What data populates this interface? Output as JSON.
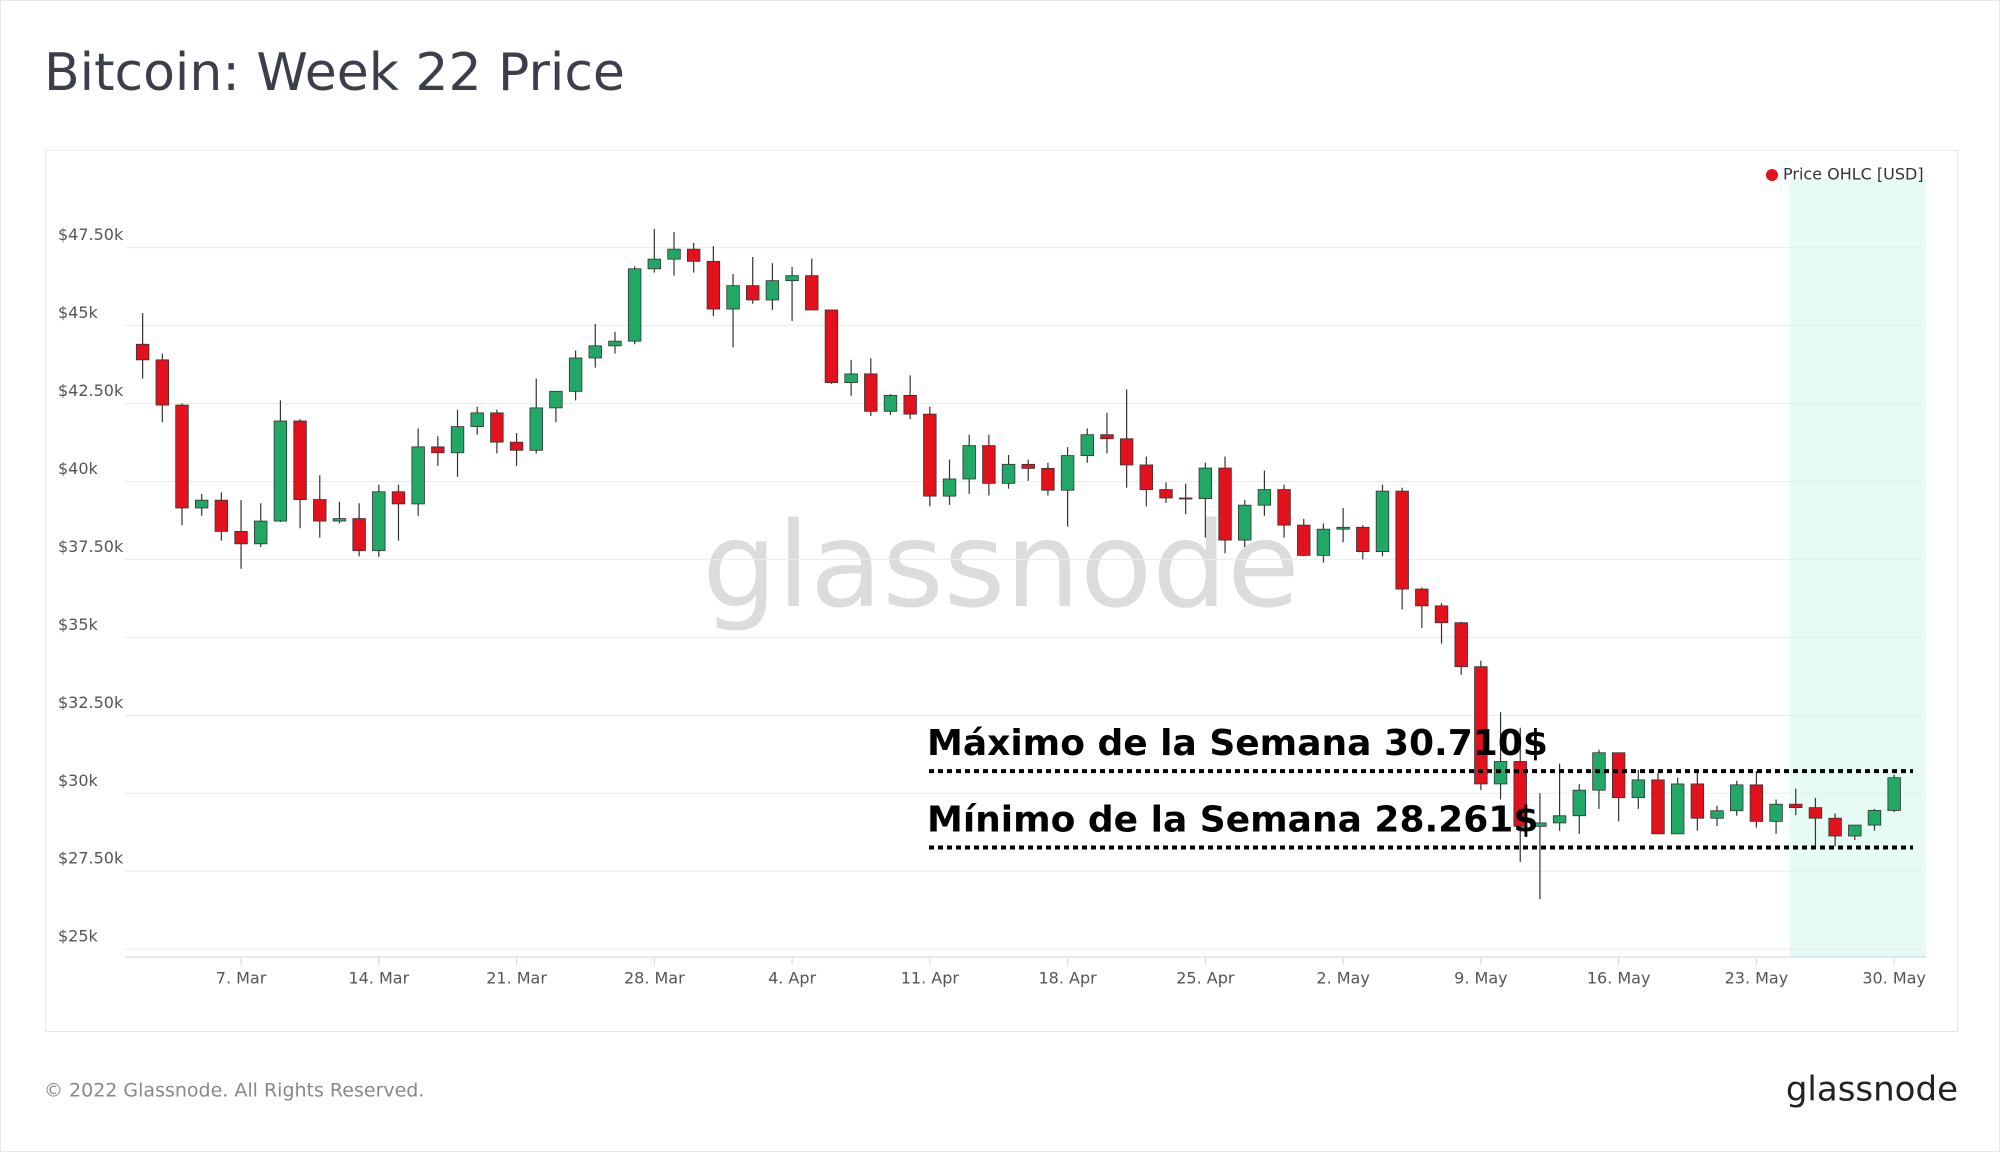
{
  "chart_data": {
    "type": "candlestick",
    "title": "Bitcoin: Week 22 Price",
    "legend": {
      "name": "Price OHLC [USD]",
      "color": "#e3111b",
      "position": "top-right"
    },
    "watermark": "glassnode",
    "footer": "© 2022 Glassnode. All Rights Reserved.",
    "logo": "glassnode",
    "up_color": "#22a866",
    "down_color": "#e3111b",
    "grid": true,
    "x": [
      "2. Mar",
      "3. Mar",
      "4. Mar",
      "5. Mar",
      "6. Mar",
      "7. Mar",
      "8. Mar",
      "9. Mar",
      "10. Mar",
      "11. Mar",
      "12. Mar",
      "13. Mar",
      "14. Mar",
      "15. Mar",
      "16. Mar",
      "17. Mar",
      "18. Mar",
      "19. Mar",
      "20. Mar",
      "21. Mar",
      "22. Mar",
      "23. Mar",
      "24. Mar",
      "25. Mar",
      "26. Mar",
      "27. Mar",
      "28. Mar",
      "29. Mar",
      "30. Mar",
      "31. Mar",
      "1. Apr",
      "2. Apr",
      "3. Apr",
      "4. Apr",
      "5. Apr",
      "6. Apr",
      "7. Apr",
      "8. Apr",
      "9. Apr",
      "10. Apr",
      "11. Apr",
      "12. Apr",
      "13. Apr",
      "14. Apr",
      "15. Apr",
      "16. Apr",
      "17. Apr",
      "18. Apr",
      "19. Apr",
      "20. Apr",
      "21. Apr",
      "22. Apr",
      "23. Apr",
      "24. Apr",
      "25. Apr",
      "26. Apr",
      "27. Apr",
      "28. Apr",
      "29. Apr",
      "30. Apr",
      "1. May",
      "2. May",
      "3. May",
      "4. May",
      "5. May",
      "6. May",
      "7. May",
      "8. May",
      "9. May",
      "10. May",
      "11. May",
      "12. May",
      "13. May",
      "14. May",
      "15. May",
      "16. May",
      "17. May",
      "18. May",
      "19. May",
      "20. May",
      "21. May",
      "22. May",
      "23. May",
      "24. May",
      "25. May",
      "26. May",
      "27. May",
      "28. May",
      "29. May",
      "30. May"
    ],
    "open": [
      44400,
      43900,
      42450,
      39150,
      39400,
      38400,
      38000,
      38730,
      41940,
      39420,
      38730,
      38810,
      37780,
      39670,
      39280,
      41110,
      40920,
      41760,
      42200,
      41260,
      41000,
      42360,
      42890,
      43960,
      44350,
      44500,
      46820,
      47130,
      47450,
      47060,
      45530,
      46280,
      45820,
      46440,
      46600,
      45500,
      43170,
      43450,
      42250,
      42760,
      42160,
      39530,
      40080,
      41150,
      39940,
      40550,
      40420,
      39720,
      40830,
      41500,
      41370,
      40530,
      39740,
      39470,
      39450,
      40430,
      38120,
      39240,
      39740,
      38600,
      37630,
      38470,
      38530,
      37750,
      39690,
      36550,
      36010,
      35470,
      34060,
      30300,
      31020,
      28940,
      29050,
      29280,
      30100,
      31300,
      29860,
      30430,
      28700,
      30300,
      29200,
      29440,
      30270,
      29100,
      29650,
      29540,
      29200,
      28630,
      28980,
      29450
    ],
    "high": [
      45400,
      44100,
      42500,
      39600,
      39650,
      39400,
      39300,
      42600,
      42000,
      40200,
      39350,
      39300,
      39900,
      39900,
      41700,
      41450,
      42300,
      42400,
      42300,
      41550,
      43300,
      42900,
      44200,
      45050,
      44800,
      46900,
      48100,
      48000,
      47650,
      47550,
      46650,
      47200,
      47000,
      46880,
      47150,
      45500,
      43900,
      43950,
      42800,
      43400,
      42400,
      40700,
      41500,
      41500,
      40850,
      40700,
      40600,
      41100,
      41700,
      42200,
      42950,
      40800,
      39970,
      39930,
      40600,
      40800,
      39400,
      40350,
      39900,
      38800,
      38650,
      39150,
      38600,
      39900,
      39800,
      36600,
      36100,
      35500,
      34250,
      32600,
      32100,
      30000,
      30950,
      30300,
      31400,
      31300,
      30750,
      30650,
      30500,
      30700,
      29600,
      30400,
      30710,
      29800,
      30150,
      29850,
      29350,
      28900,
      29500,
      30600
    ],
    "low": [
      43300,
      41900,
      38600,
      38900,
      38100,
      37200,
      37900,
      38700,
      38500,
      38200,
      38650,
      37600,
      37580,
      38100,
      38900,
      40500,
      40150,
      41500,
      40900,
      40500,
      40900,
      41900,
      42600,
      43650,
      44100,
      44400,
      46700,
      46600,
      46700,
      45300,
      44300,
      45700,
      45500,
      45150,
      45500,
      43130,
      42750,
      42100,
      42130,
      42000,
      39200,
      39250,
      39600,
      39550,
      39770,
      40020,
      39550,
      38550,
      40600,
      40900,
      39800,
      39200,
      39310,
      38950,
      38200,
      37700,
      37900,
      38900,
      38200,
      37600,
      37400,
      38050,
      37500,
      37600,
      35900,
      35300,
      34800,
      33800,
      30100,
      29800,
      27800,
      26600,
      28800,
      28700,
      29500,
      29100,
      29500,
      28700,
      28700,
      28800,
      28950,
      29280,
      28900,
      28700,
      29300,
      28261,
      28300,
      28500,
      28800,
      29400
    ],
    "close": [
      43900,
      42450,
      39150,
      39400,
      38400,
      38000,
      38730,
      41940,
      39420,
      38730,
      38810,
      37780,
      39670,
      39280,
      41110,
      40920,
      41760,
      42200,
      41260,
      41000,
      42360,
      42890,
      43960,
      44350,
      44500,
      46820,
      47130,
      47450,
      47060,
      45530,
      46280,
      45820,
      46440,
      46600,
      45500,
      43170,
      43450,
      42250,
      42760,
      42160,
      39530,
      40080,
      41150,
      39940,
      40550,
      40420,
      39720,
      40830,
      41500,
      41370,
      40530,
      39740,
      39470,
      39450,
      40430,
      38120,
      39240,
      39740,
      38600,
      37630,
      38470,
      38530,
      37750,
      39690,
      36550,
      36010,
      35470,
      34060,
      30300,
      31020,
      28940,
      29050,
      29280,
      30100,
      31300,
      29860,
      30430,
      28700,
      30300,
      29200,
      29440,
      30270,
      29100,
      29650,
      29540,
      29200,
      28630,
      28980,
      29450,
      30500
    ],
    "ylim": [
      24750,
      49700
    ],
    "yticks": [
      {
        "value": 25000,
        "label": "$25k"
      },
      {
        "value": 27500,
        "label": "$27.50k"
      },
      {
        "value": 30000,
        "label": "$30k"
      },
      {
        "value": 32500,
        "label": "$32.50k"
      },
      {
        "value": 35000,
        "label": "$35k"
      },
      {
        "value": 37500,
        "label": "$37.50k"
      },
      {
        "value": 40000,
        "label": "$40k"
      },
      {
        "value": 42500,
        "label": "$42.50k"
      },
      {
        "value": 45000,
        "label": "$45k"
      },
      {
        "value": 47500,
        "label": "$47.50k"
      }
    ],
    "xticks": [
      "7. Mar",
      "14. Mar",
      "21. Mar",
      "28. Mar",
      "4. Apr",
      "11. Apr",
      "18. Apr",
      "25. Apr",
      "2. May",
      "9. May",
      "16. May",
      "23. May",
      "30. May"
    ],
    "annotations": [
      {
        "text": "Máximo de la Semana 30.710$",
        "value": 30710
      },
      {
        "text": "Mínimo de la Semana 28.261$",
        "value": 28261
      }
    ]
  }
}
